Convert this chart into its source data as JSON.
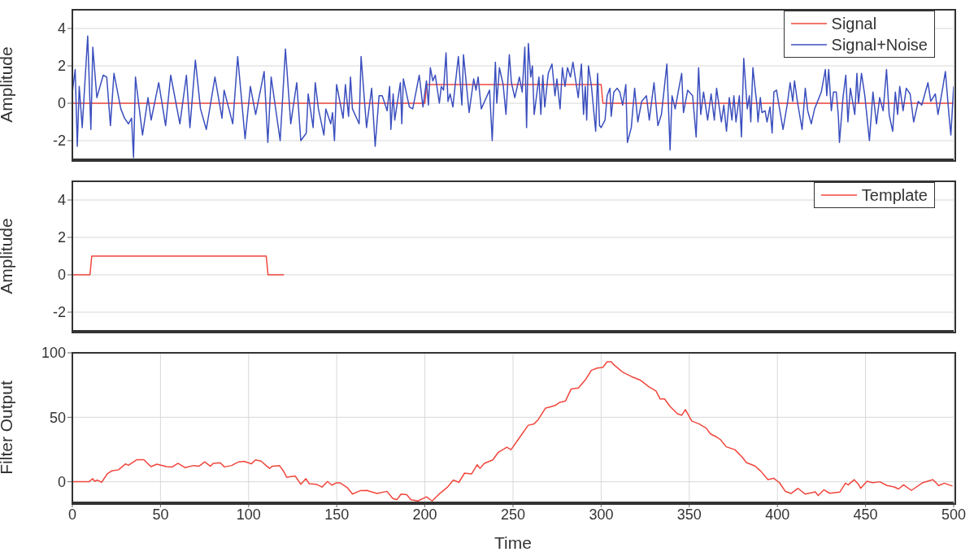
{
  "chart_data": [
    {
      "type": "line",
      "ylabel": "Amplitude",
      "xlim": [
        0,
        500
      ],
      "xticks": [
        0,
        50,
        100,
        150,
        200,
        250,
        300,
        350,
        400,
        450,
        500
      ],
      "ylim": [
        -3,
        5
      ],
      "yticks": [
        -2,
        0,
        2,
        4
      ],
      "grid": true,
      "legend": "top right",
      "tick_labels": "y",
      "series": [
        {
          "name": "Signal",
          "color": "#f0463c",
          "x": [
            0,
            200,
            201,
            300,
            301,
            500
          ],
          "values": [
            0,
            0,
            1,
            1,
            0,
            0
          ]
        },
        {
          "name": "Signal+Noise",
          "color": "#3b4fbe",
          "x": [
            0,
            1.6,
            2.8,
            3.9,
            5.6,
            8.7,
            10.5,
            11.6,
            13.9,
            17.5,
            19.5,
            21.6,
            23.6,
            27.5,
            29.6,
            31.8,
            33.6,
            34.7,
            35.8,
            39.8,
            42.9,
            44.7,
            49,
            52.9,
            55.8,
            61,
            64.7,
            66.7,
            69.8,
            72.7,
            76,
            80.9,
            84.9,
            86.1,
            91,
            93.8,
            98,
            101,
            104,
            108.8,
            110.9,
            112.8,
            117.9,
            120.9,
            123.9,
            127.3,
            129.6,
            132.7,
            133.8,
            136.6,
            137.8,
            139.6,
            142.7,
            143.8,
            146.6,
            147.6,
            148.7,
            149.9,
            153.6,
            154.9,
            156.7,
            157.8,
            158.9,
            162.7,
            163.8,
            166.9,
            169.8,
            171.8,
            174,
            175.8,
            178.6,
            180,
            180.7,
            182,
            182.9,
            186.1,
            186.9,
            187.8,
            191.2,
            193.1,
            196.8,
            198.9,
            200.9,
            202,
            203.1,
            204.5,
            205.9,
            208.2,
            209.3,
            210.6,
            212,
            213.1,
            214.3,
            215.9,
            217.1,
            219,
            221,
            221.9,
            225.1,
            227.7,
            229,
            230.2,
            232,
            236.7,
            238.2,
            240,
            240.8,
            242.3,
            244.4,
            246,
            247.9,
            249.1,
            251,
            253.6,
            255.2,
            256.7,
            257.7,
            258.7,
            260,
            261,
            262,
            264.7,
            265.8,
            266.9,
            268,
            270,
            272.1,
            273.8,
            274.9,
            276.7,
            278,
            279.5,
            280.9,
            282.6,
            284,
            287,
            288.8,
            290,
            291,
            291.8,
            292.8,
            294.5,
            296.9,
            298,
            299.1,
            300,
            302.2,
            303.4,
            305,
            305.7,
            307.2,
            309.1,
            310.6,
            312.2,
            314,
            314.9,
            317.1,
            319,
            320.8,
            323,
            325.7,
            327.3,
            330,
            332.2,
            334.2,
            337.3,
            339.1,
            340.2,
            342,
            343.9,
            345.7,
            346.7,
            349.1,
            351.9,
            353.9,
            355.3,
            356.5,
            358.1,
            360.4,
            362.4,
            364.2,
            365.5,
            368.2,
            369.6,
            371.1,
            372.7,
            374.2,
            375.3,
            376.5,
            378.4,
            379.6,
            380.9,
            382.9,
            384.1,
            384.9,
            386.1,
            387.2,
            388.4,
            389,
            390.3,
            391.2,
            393,
            394.1,
            395.8,
            397,
            398,
            399.5,
            400.7,
            403.2,
            405.7,
            407.2,
            408.7,
            409.7,
            411.5,
            414,
            415.8,
            417.2,
            419.2,
            421.1,
            424.9,
            427.2,
            428,
            429.1,
            430.6,
            431.8,
            433.4,
            434.6,
            435.2,
            437.2,
            438.8,
            440,
            441.4,
            443.9,
            445.1,
            446,
            447.7,
            449.6,
            452.2,
            454.2,
            456.2,
            458,
            460,
            461.9,
            463.4,
            465.4,
            466.9,
            468.2,
            469.4,
            471.3,
            473.1,
            475.3,
            477.3,
            479.9,
            481.9,
            485.4,
            487,
            489.6,
            491.1,
            493.4,
            495.3,
            497.3,
            498.4,
            500
          ],
          "values": [
            0.6,
            1.8,
            -2.3,
            0.9,
            -1.3,
            3.6,
            -1.4,
            3.0,
            0.3,
            1.5,
            1.4,
            -1.2,
            1.6,
            -0.3,
            -0.8,
            -1.1,
            -0.8,
            -2.9,
            1.4,
            -1.7,
            0.3,
            -0.9,
            1.1,
            -1.2,
            1.5,
            -1.1,
            1.5,
            -1.3,
            2.3,
            -0.3,
            -1.4,
            1.4,
            -0.8,
            0.7,
            -1.1,
            2.5,
            -1.9,
            0.9,
            -0.6,
            1.7,
            -2.1,
            1.4,
            -2.0,
            2.9,
            -1.1,
            1.1,
            -2.0,
            -1.6,
            0.5,
            -1.3,
            1.1,
            -0.3,
            -1.7,
            -0.3,
            -1.1,
            -0.5,
            -2.0,
            1.0,
            -0.8,
            1.0,
            -0.7,
            1.4,
            -0.3,
            -1.1,
            2.5,
            -1.3,
            0.8,
            -2.3,
            0.4,
            0.4,
            -0.4,
            0.9,
            -1.4,
            0.5,
            -0.9,
            1.1,
            -1.1,
            1.3,
            -0.2,
            -0.3,
            1.5,
            -0.2,
            1.2,
            -0.1,
            1.9,
            1.2,
            1.5,
            0.0,
            0.9,
            0.7,
            2.7,
            0.1,
            0.5,
            -0.2,
            0.9,
            2.5,
            -0.1,
            2.6,
            -0.5,
            1.3,
            0.7,
            1.4,
            -0.3,
            0.7,
            -2.0,
            2.2,
            0.0,
            1.9,
            1.0,
            -0.6,
            2.6,
            1.1,
            0.3,
            1.4,
            0.6,
            3.0,
            -1.3,
            3.2,
            1.4,
            2.0,
            -0.6,
            1.4,
            -0.6,
            1.5,
            -0.2,
            1.6,
            2.1,
            0.4,
            1.3,
            -0.3,
            1.9,
            0.9,
            1.9,
            1.4,
            2.2,
            0.3,
            2.1,
            -0.6,
            0.9,
            -0.9,
            2.0,
            0.9,
            -1.5,
            1.6,
            -1.2,
            -1.3,
            -0.9,
            0.4,
            0.8,
            -0.7,
            0.6,
            0.8,
            0.6,
            -0.1,
            1.0,
            -2.1,
            -1.3,
            0.8,
            -1.0,
            0.1,
            0.4,
            -0.9,
            1.1,
            -1.2,
            -0.6,
            2.1,
            -2.5,
            0.4,
            -0.3,
            0.7,
            1.6,
            -0.5,
            0.7,
            0.4,
            -1.8,
            1.9,
            -0.6,
            0.6,
            -0.9,
            0.5,
            -0.9,
            0.8,
            -1.0,
            -0.1,
            -1.5,
            0.3,
            -0.9,
            0.4,
            -1.0,
            0.4,
            -1.8,
            2.4,
            -0.3,
            0.4,
            -1.0,
            1.9,
            0.9,
            -0.1,
            -1.0,
            0.3,
            -0.5,
            -0.4,
            -1.0,
            -0.2,
            -1.6,
            0.6,
            0.7,
            0.0,
            -1.4,
            0.0,
            1.1,
            0.1,
            1.2,
            0.0,
            -1.4,
            0.8,
            -0.4,
            -1.1,
            -0.3,
            0.6,
            1.8,
            0.4,
            1.8,
            -0.4,
            0.6,
            0.6,
            -0.7,
            -2.1,
            0.3,
            1.5,
            -1.0,
            0.8,
            -0.6,
            1.6,
            0.0,
            1.6,
            0.4,
            -2.0,
            0.6,
            -1.1,
            0.3,
            -0.4,
            1.8,
            -0.6,
            -1.5,
            0.6,
            -0.6,
            0.9,
            -0.4,
            0.8,
            0.5,
            -1.0,
            0.1,
            -0.1,
            1.1,
            0.1,
            0.5,
            -0.6,
            0.6,
            1.7,
            -0.6,
            -1.7,
            0.9
          ]
        }
      ]
    },
    {
      "type": "line",
      "ylabel": "Amplitude",
      "xlim": [
        0,
        500
      ],
      "xticks": [
        0,
        50,
        100,
        150,
        200,
        250,
        300,
        350,
        400,
        450,
        500
      ],
      "ylim": [
        -3,
        5
      ],
      "yticks": [
        -2,
        0,
        2,
        4
      ],
      "grid": true,
      "legend": "top right",
      "tick_labels": "y",
      "series": [
        {
          "name": "Template",
          "color": "#f0463c",
          "x": [
            0,
            10,
            11,
            110,
            111,
            120
          ],
          "values": [
            0,
            0,
            1,
            1,
            0,
            0
          ]
        }
      ]
    },
    {
      "type": "line",
      "xlabel": "Time",
      "ylabel": "Filter Output",
      "xlim": [
        0,
        500
      ],
      "xticks": [
        0,
        50,
        100,
        150,
        200,
        250,
        300,
        350,
        400,
        450,
        500
      ],
      "ylim": [
        -16,
        100
      ],
      "yticks": [
        0,
        50,
        100
      ],
      "grid": true,
      "series": [
        {
          "color": "#f0463c",
          "x": [
            0,
            9.4,
            11.5,
            12.6,
            14.2,
            16.6,
            19.8,
            22.2,
            26.2,
            30.2,
            31.8,
            36.6,
            40.6,
            44.6,
            47.9,
            53.5,
            56.7,
            59.9,
            63.9,
            68.7,
            71.9,
            75.1,
            78.3,
            79.9,
            83.9,
            86.3,
            90.3,
            94.3,
            97.5,
            101.5,
            103.9,
            107.1,
            110.3,
            111.9,
            113.5,
            117.5,
            120,
            121.6,
            126.4,
            129.6,
            132.5,
            134.4,
            138.4,
            141.6,
            144.8,
            147.2,
            149.6,
            152,
            156,
            158.9,
            163.2,
            167.2,
            169.6,
            172.9,
            178.5,
            181.7,
            184.1,
            186.5,
            189.7,
            192.1,
            196.1,
            200.9,
            204.1,
            208.1,
            212.9,
            216.1,
            219.3,
            222.5,
            226.5,
            229.7,
            231.3,
            233.7,
            238.5,
            241.7,
            246.5,
            248.9,
            252.9,
            258.6,
            261.9,
            264.3,
            268.4,
            271.6,
            274.1,
            276.5,
            279.8,
            283,
            287.1,
            291.2,
            294.4,
            297.7,
            300.9,
            303.4,
            305.8,
            307.1,
            312.3,
            317.2,
            322.1,
            327,
            331.1,
            333.5,
            336,
            339.2,
            343.3,
            345.7,
            347.8,
            351.4,
            355.5,
            359.6,
            362,
            365.3,
            367.7,
            371,
            375.9,
            379.9,
            382.4,
            387.3,
            390.6,
            394.6,
            397.9,
            401.2,
            404.4,
            407.7,
            411.7,
            415.8,
            421.5,
            423.1,
            426.4,
            429.6,
            435.4,
            438.6,
            440.2,
            443.5,
            445.9,
            447.2,
            450.8,
            454.1,
            458.1,
            462.2,
            466.3,
            468.7,
            471.6,
            476,
            482.5,
            488.2,
            491.5,
            494.7,
            499.3
          ],
          "values": [
            0,
            0,
            2.4,
            0.4,
            1.3,
            -0.4,
            6.1,
            8.4,
            9.3,
            13.9,
            12.8,
            17.1,
            17.1,
            11.7,
            13.6,
            11.7,
            11.5,
            14.3,
            11.0,
            12.6,
            12.1,
            15.4,
            12.1,
            14.3,
            14.7,
            11.5,
            12.6,
            15.4,
            15.8,
            13.9,
            16.9,
            16.0,
            12.1,
            10.4,
            12.1,
            12.6,
            7.8,
            3.5,
            4.5,
            -1.9,
            2.4,
            -1.5,
            -1.9,
            -4.1,
            0.2,
            -2.6,
            -0.9,
            -0.9,
            -4.5,
            -9.5,
            -6.9,
            -6.7,
            -7.8,
            -9.1,
            -7.4,
            -12.8,
            -13.9,
            -9.5,
            -10.0,
            -13.9,
            -14.9,
            -11.7,
            -14.9,
            -9.5,
            -4.1,
            1.3,
            -0.4,
            6.7,
            6.1,
            13.2,
            10.4,
            14.3,
            16.9,
            22.9,
            26.8,
            24.9,
            32.7,
            43.8,
            44.9,
            48.2,
            57.1,
            58.2,
            59.3,
            61.6,
            62.7,
            72.0,
            72.7,
            79.3,
            86.4,
            88.2,
            88.7,
            93.1,
            93.1,
            90.9,
            84.9,
            81.6,
            78.9,
            73.8,
            70.4,
            64.2,
            64.2,
            58.2,
            52.7,
            51.6,
            56.0,
            47.1,
            44.9,
            41.6,
            37.1,
            34.9,
            32.7,
            27.1,
            24.9,
            19.3,
            14.9,
            12.2,
            8.2,
            1.6,
            2.7,
            -0.7,
            -7.3,
            -9.1,
            -5.1,
            -9.6,
            -7.8,
            -10.7,
            -6.2,
            -8.9,
            -8.0,
            -1.1,
            -2.4,
            1.6,
            -1.8,
            -5.1,
            0.4,
            -0.7,
            0.0,
            -2.9,
            -4.0,
            -5.6,
            -2.4,
            -6.7,
            -0.7,
            1.6,
            -2.9,
            -1.1,
            -3.3
          ]
        }
      ]
    }
  ]
}
